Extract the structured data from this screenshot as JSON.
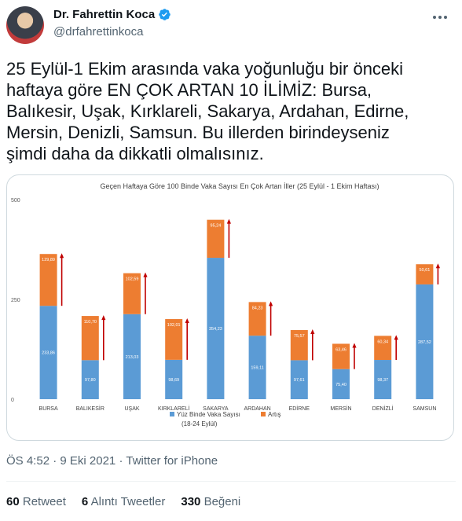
{
  "author": {
    "display_name": "Dr. Fahrettin Koca",
    "handle": "@drfahrettinkoca",
    "verified_icon": "verified-badge-icon",
    "badge_color": "#1d9bf0"
  },
  "tweet": {
    "text": "25 Eylül-1 Ekim arasında vaka yoğunluğu bir önceki\nhaftaya göre EN ÇOK ARTAN 10 İLİMİZ: Bursa,\nBalıkesir, Uşak, Kırklareli, Sakarya, Ardahan, Edirne,\nMersin, Denizli, Samsun. Bu illerden birindeyseniz\nşimdi daha da dikkatli olmalısınız.",
    "time": "ÖS 4:52",
    "sep1": "·",
    "date": "9 Eki 2021",
    "sep2": "·",
    "source": "Twitter for iPhone"
  },
  "stats": {
    "retweets_count": "60",
    "retweets_label": "Retweet",
    "quotes_count": "6",
    "quotes_label": "Alıntı Tweetler",
    "likes_count": "330",
    "likes_label": "Beğeni"
  },
  "chart_data": {
    "type": "bar",
    "stacked": true,
    "title": "Geçen Haftaya Göre 100 Binde Vaka Sayısı En Çok Artan İller (25 Eylül - 1 Ekim Haftası)",
    "categories": [
      "BURSA",
      "BALIKESİR",
      "UŞAK",
      "KIRKLARELİ",
      "SAKARYA",
      "ARDAHAN",
      "EDİRNE",
      "MERSİN",
      "DENİZLİ",
      "SAMSUN"
    ],
    "series": [
      {
        "name": "Yüz Binde Vaka Sayısı\n(18-24 Eylül)",
        "color": "#5b9bd5",
        "values": [
          233.86,
          97.8,
          213.03,
          98.69,
          354.23,
          159.11,
          97.61,
          75.4,
          98.37,
          287.52
        ],
        "labels": [
          "233,86",
          "97,80",
          "213,03",
          "98,69",
          "354,23",
          "159,11",
          "97,61",
          "75,40",
          "98,37",
          "287,52"
        ]
      },
      {
        "name": "Artış",
        "color": "#ed7d31",
        "values": [
          129.89,
          110.7,
          102.59,
          102.01,
          95.24,
          84.23,
          75.57,
          63.46,
          60.34,
          50.61
        ],
        "labels": [
          "129,89",
          "110,70",
          "102,59",
          "102,01",
          "95,24",
          "84,23",
          "75,57",
          "63,46",
          "60,34",
          "50,61"
        ]
      }
    ],
    "legend": [
      {
        "label_line1": "Yüz Binde Vaka Sayısı",
        "label_line2": "(18-24 Eylül)",
        "color": "#5b9bd5"
      },
      {
        "label_line1": "Artış",
        "label_line2": "",
        "color": "#ed7d31"
      }
    ],
    "arrow_color": "#c00000",
    "yticks": [
      "500",
      "250",
      "0"
    ],
    "ylim": [
      0,
      500
    ],
    "grid": false,
    "legend_position": "bottom"
  }
}
